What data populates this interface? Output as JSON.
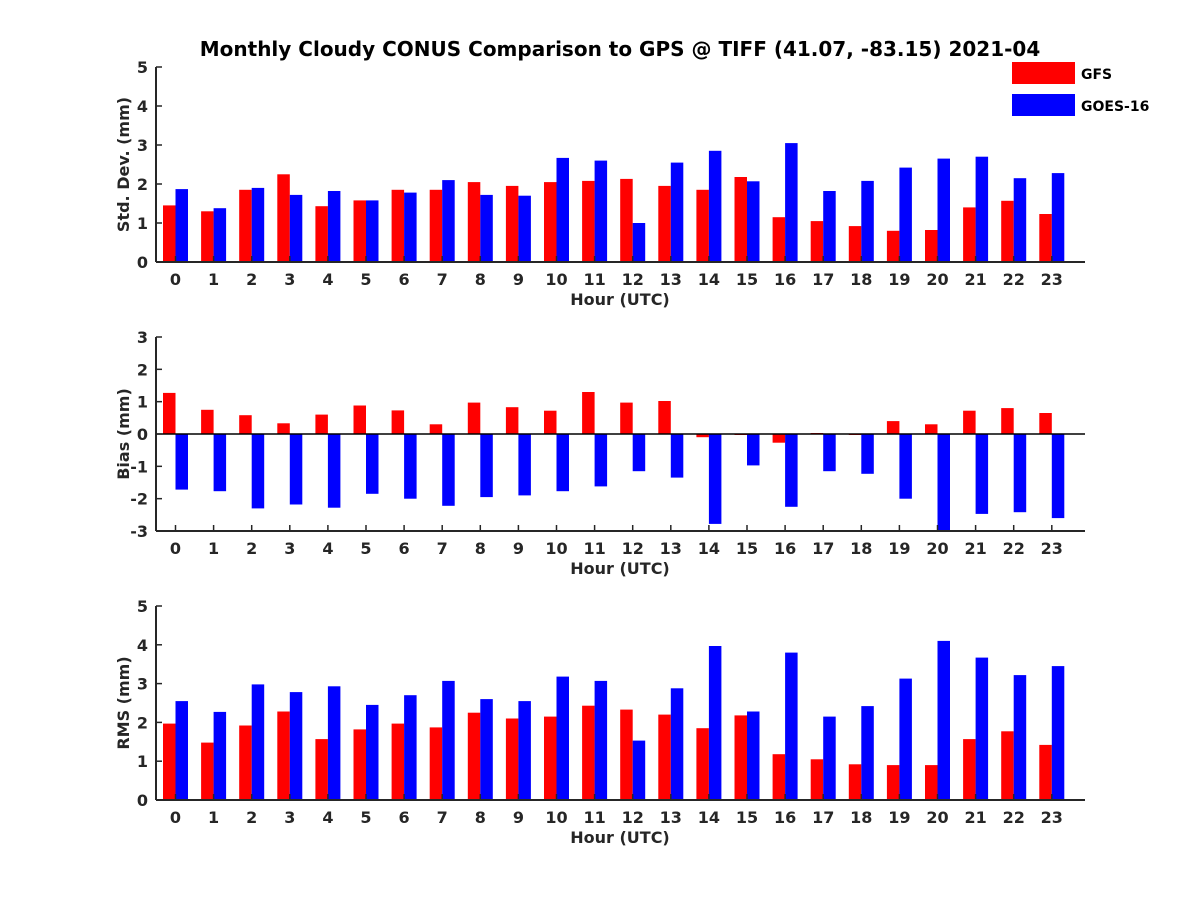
{
  "chart_data": {
    "type": "bar",
    "title": "Monthly Cloudy CONUS Comparison to GPS @ TIFF (41.07, -83.15) 2021-04",
    "legend": {
      "placement": "top-right",
      "entries": [
        {
          "name": "GFS",
          "color": "#ff0000"
        },
        {
          "name": "GOES-16",
          "color": "#0000ff"
        }
      ]
    },
    "categories": [
      "0",
      "1",
      "2",
      "3",
      "4",
      "5",
      "6",
      "7",
      "8",
      "9",
      "10",
      "11",
      "12",
      "13",
      "14",
      "15",
      "16",
      "17",
      "18",
      "19",
      "20",
      "21",
      "22",
      "23"
    ],
    "panels": [
      {
        "ylabel": "Std. Dev. (mm)",
        "xlabel": "Hour (UTC)",
        "ylim": [
          0,
          5
        ],
        "yticks": [
          "0",
          "1",
          "2",
          "3",
          "4",
          "5"
        ],
        "series": [
          {
            "name": "GFS",
            "color": "#ff0000",
            "values": [
              1.45,
              1.3,
              1.85,
              2.25,
              1.43,
              1.58,
              1.85,
              1.85,
              2.05,
              1.95,
              2.05,
              2.08,
              2.13,
              1.95,
              1.85,
              2.18,
              1.15,
              1.05,
              0.92,
              0.8,
              0.82,
              1.4,
              1.57,
              1.23
            ]
          },
          {
            "name": "GOES-16",
            "color": "#0000ff",
            "values": [
              1.87,
              1.38,
              1.9,
              1.72,
              1.82,
              1.58,
              1.78,
              2.1,
              1.72,
              1.7,
              2.67,
              2.6,
              1.0,
              2.55,
              2.85,
              2.07,
              3.05,
              1.82,
              2.08,
              2.42,
              2.65,
              2.7,
              2.15,
              2.28
            ]
          }
        ]
      },
      {
        "ylabel": "Bias (mm)",
        "xlabel": "Hour (UTC)",
        "ylim": [
          -3,
          3
        ],
        "yticks": [
          "-3",
          "-2",
          "-1",
          "0",
          "1",
          "2",
          "3"
        ],
        "series": [
          {
            "name": "GFS",
            "color": "#ff0000",
            "values": [
              1.27,
              0.75,
              0.58,
              0.33,
              0.6,
              0.88,
              0.73,
              0.3,
              0.97,
              0.83,
              0.72,
              1.3,
              0.97,
              1.02,
              -0.1,
              -0.03,
              -0.27,
              0.03,
              -0.03,
              0.4,
              0.3,
              0.72,
              0.8,
              0.65
            ]
          },
          {
            "name": "GOES-16",
            "color": "#0000ff",
            "values": [
              -1.72,
              -1.77,
              -2.3,
              -2.18,
              -2.28,
              -1.85,
              -2.0,
              -2.22,
              -1.95,
              -1.9,
              -1.77,
              -1.62,
              -1.15,
              -1.35,
              -2.78,
              -0.97,
              -2.25,
              -1.15,
              -1.23,
              -2.0,
              -3.0,
              -2.47,
              -2.42,
              -2.6
            ]
          }
        ]
      },
      {
        "ylabel": "RMS (mm)",
        "xlabel": "Hour (UTC)",
        "ylim": [
          0,
          5
        ],
        "yticks": [
          "0",
          "1",
          "2",
          "3",
          "4",
          "5"
        ],
        "series": [
          {
            "name": "GFS",
            "color": "#ff0000",
            "values": [
              1.97,
              1.48,
              1.92,
              2.28,
              1.57,
              1.82,
              1.97,
              1.87,
              2.25,
              2.1,
              2.15,
              2.43,
              2.33,
              2.2,
              1.85,
              2.18,
              1.18,
              1.05,
              0.92,
              0.9,
              0.9,
              1.57,
              1.77,
              1.42
            ]
          },
          {
            "name": "GOES-16",
            "color": "#0000ff",
            "values": [
              2.55,
              2.27,
              2.98,
              2.78,
              2.93,
              2.45,
              2.7,
              3.07,
              2.6,
              2.55,
              3.18,
              3.07,
              1.53,
              2.88,
              3.97,
              2.28,
              3.8,
              2.15,
              2.42,
              3.13,
              4.1,
              3.67,
              3.22,
              3.45
            ]
          }
        ]
      }
    ]
  }
}
